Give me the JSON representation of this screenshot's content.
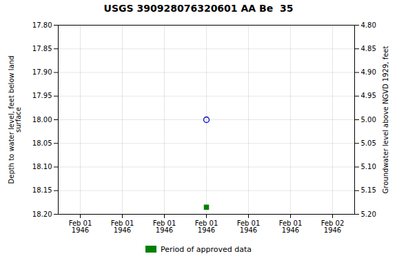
{
  "chart_data": {
    "type": "scatter",
    "title": "USGS 390928076320601 AA Be  35",
    "categories": [
      "Feb 01\n1946",
      "Feb 01\n1946",
      "Feb 01\n1946",
      "Feb 01\n1946",
      "Feb 01\n1946",
      "Feb 01\n1946",
      "Feb 02\n1946"
    ],
    "series": [
      {
        "color": "#0000cc",
        "marker": "circle",
        "values": [
          null,
          null,
          null,
          18.0,
          null,
          null,
          null
        ]
      },
      {
        "name": "Period of approved data",
        "color": "#008000",
        "marker": "square",
        "values": [
          null,
          null,
          null,
          18.185,
          null,
          null,
          null
        ]
      }
    ],
    "ylabel": "Depth to water level, feet below land\nsurface",
    "y2label": "Groundwater level above NGVD 1929, feet",
    "ylim": [
      18.2,
      17.8
    ],
    "yticks": [
      {
        "value": 17.8,
        "label": "17.80"
      },
      17.85,
      {
        "value": 17.9,
        "label": "17.90"
      },
      17.95,
      {
        "value": 18.0,
        "label": "18.00"
      },
      18.05,
      {
        "value": 18.1,
        "label": "18.10"
      },
      18.15,
      {
        "value": 18.2,
        "label": "18.20"
      }
    ],
    "y2lim": [
      5.2,
      4.8
    ],
    "y2ticks": [
      {
        "value": 5.2,
        "label": "5.20"
      },
      5.15,
      {
        "value": 5.1,
        "label": "5.10"
      },
      5.05,
      {
        "value": 5.0,
        "label": "5.00"
      },
      4.95,
      {
        "value": 4.9,
        "label": "4.90"
      },
      4.85,
      {
        "value": 4.8,
        "label": "4.80"
      }
    ],
    "grid": true,
    "legend": "bottom"
  }
}
